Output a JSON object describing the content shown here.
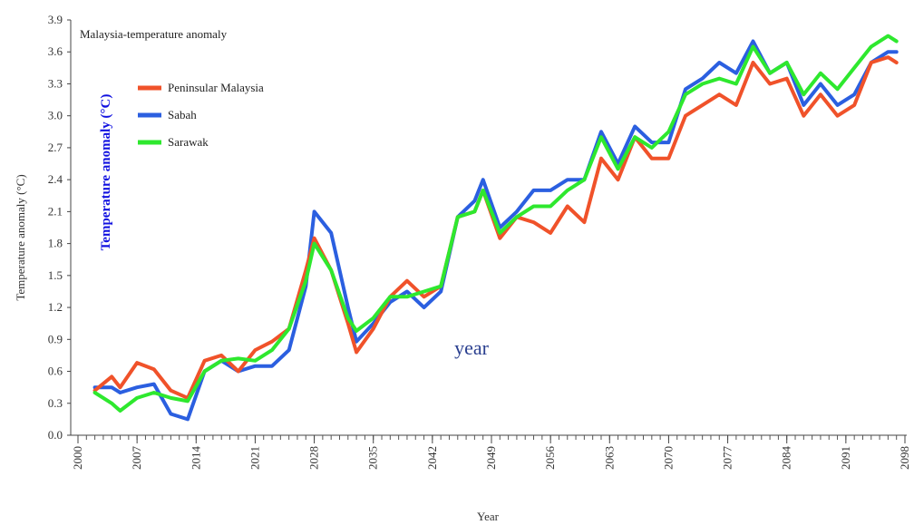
{
  "chart_data": {
    "type": "line",
    "title": "Malaysia-temperature anomaly",
    "xlabel": "Year",
    "ylabel": "Temperature anomaly (°C)",
    "overlay_ylabel": "Temperature anomaly (°C)",
    "overlay_xlabel": "year",
    "xlim": [
      2000,
      2098
    ],
    "ylim": [
      0.0,
      3.9
    ],
    "x_ticks": [
      "2000",
      "2007",
      "2014",
      "2021",
      "2028",
      "2035",
      "2042",
      "2049",
      "2056",
      "2063",
      "2070",
      "2077",
      "2084",
      "2091",
      "2098"
    ],
    "y_ticks": [
      "0.0",
      "0.3",
      "0.6",
      "0.9",
      "1.2",
      "1.5",
      "1.8",
      "2.1",
      "2.4",
      "2.7",
      "3.0",
      "3.3",
      "3.6",
      "3.9"
    ],
    "legend_position": "top-left",
    "x": [
      2002,
      2004,
      2005,
      2007,
      2009,
      2011,
      2013,
      2015,
      2017,
      2019,
      2021,
      2023,
      2025,
      2027,
      2028,
      2030,
      2032,
      2033,
      2035,
      2037,
      2039,
      2041,
      2043,
      2045,
      2047,
      2048,
      2050,
      2052,
      2054,
      2056,
      2058,
      2060,
      2062,
      2064,
      2066,
      2068,
      2070,
      2072,
      2074,
      2076,
      2078,
      2080,
      2082,
      2084,
      2086,
      2088,
      2090,
      2092,
      2094,
      2096,
      2097
    ],
    "series": [
      {
        "name": "Peninsular Malaysia",
        "color": "#f0522a",
        "values": [
          0.42,
          0.55,
          0.45,
          0.68,
          0.62,
          0.42,
          0.35,
          0.7,
          0.75,
          0.6,
          0.8,
          0.88,
          1.0,
          1.55,
          1.85,
          1.55,
          1.05,
          0.78,
          1.0,
          1.3,
          1.45,
          1.3,
          1.4,
          2.05,
          2.1,
          2.3,
          1.85,
          2.05,
          2.0,
          1.9,
          2.15,
          2.0,
          2.6,
          2.4,
          2.8,
          2.6,
          2.6,
          3.0,
          3.1,
          3.2,
          3.1,
          3.5,
          3.3,
          3.35,
          3.0,
          3.2,
          3.0,
          3.1,
          3.5,
          3.55,
          3.5
        ]
      },
      {
        "name": "Sabah",
        "color": "#2b5fe0",
        "values": [
          0.45,
          0.45,
          0.4,
          0.45,
          0.48,
          0.2,
          0.15,
          0.6,
          0.7,
          0.6,
          0.65,
          0.65,
          0.8,
          1.4,
          2.1,
          1.9,
          1.2,
          0.88,
          1.05,
          1.25,
          1.35,
          1.2,
          1.35,
          2.05,
          2.2,
          2.4,
          1.95,
          2.1,
          2.3,
          2.3,
          2.4,
          2.4,
          2.85,
          2.55,
          2.9,
          2.75,
          2.75,
          3.25,
          3.35,
          3.5,
          3.4,
          3.7,
          3.4,
          3.5,
          3.1,
          3.3,
          3.1,
          3.2,
          3.5,
          3.6,
          3.6
        ]
      },
      {
        "name": "Sarawak",
        "color": "#2ee82e",
        "values": [
          0.4,
          0.3,
          0.23,
          0.35,
          0.4,
          0.35,
          0.32,
          0.6,
          0.7,
          0.72,
          0.7,
          0.8,
          1.0,
          1.45,
          1.8,
          1.55,
          1.1,
          0.98,
          1.1,
          1.3,
          1.3,
          1.35,
          1.4,
          2.05,
          2.1,
          2.3,
          1.9,
          2.05,
          2.15,
          2.15,
          2.3,
          2.4,
          2.8,
          2.5,
          2.8,
          2.7,
          2.85,
          3.2,
          3.3,
          3.35,
          3.3,
          3.65,
          3.4,
          3.5,
          3.2,
          3.4,
          3.25,
          3.45,
          3.65,
          3.75,
          3.7
        ]
      }
    ]
  }
}
